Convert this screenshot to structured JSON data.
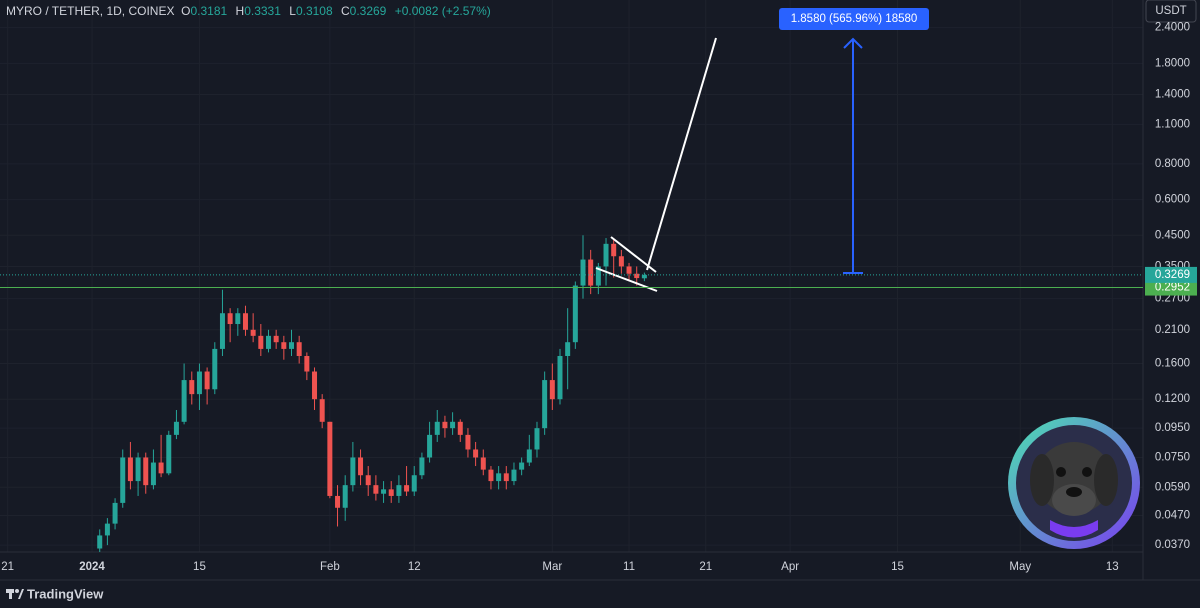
{
  "header": {
    "symbol": "MYRO / TETHER, 1D, COINEX",
    "o": "O",
    "h": "H",
    "l": "L",
    "c": "C",
    "change": "+0.0082 (+2.57%)",
    "currency": "USDT",
    "brand": "TradingView",
    "measure_label": "1.8580 (565.96%) 18580"
  },
  "chart_data": {
    "type": "candlestick",
    "log_scale": true,
    "grid": true,
    "up_color": "#26a69a",
    "down_color": "#ef5350",
    "x": [
      "2024-01-02",
      "2024-01-03",
      "2024-01-04",
      "2024-01-05",
      "2024-01-06",
      "2024-01-07",
      "2024-01-08",
      "2024-01-09",
      "2024-01-10",
      "2024-01-11",
      "2024-01-12",
      "2024-01-13",
      "2024-01-14",
      "2024-01-15",
      "2024-01-16",
      "2024-01-17",
      "2024-01-18",
      "2024-01-19",
      "2024-01-20",
      "2024-01-21",
      "2024-01-22",
      "2024-01-23",
      "2024-01-24",
      "2024-01-25",
      "2024-01-26",
      "2024-01-27",
      "2024-01-28",
      "2024-01-29",
      "2024-01-30",
      "2024-01-31",
      "2024-02-01",
      "2024-02-02",
      "2024-02-03",
      "2024-02-04",
      "2024-02-05",
      "2024-02-06",
      "2024-02-07",
      "2024-02-08",
      "2024-02-09",
      "2024-02-10",
      "2024-02-11",
      "2024-02-12",
      "2024-02-13",
      "2024-02-14",
      "2024-02-15",
      "2024-02-16",
      "2024-02-17",
      "2024-02-18",
      "2024-02-19",
      "2024-02-20",
      "2024-02-21",
      "2024-02-22",
      "2024-02-23",
      "2024-02-24",
      "2024-02-25",
      "2024-02-26",
      "2024-02-27",
      "2024-02-28",
      "2024-02-29",
      "2024-03-01",
      "2024-03-02",
      "2024-03-03",
      "2024-03-04",
      "2024-03-05",
      "2024-03-06",
      "2024-03-07",
      "2024-03-08",
      "2024-03-09",
      "2024-03-10",
      "2024-03-11",
      "2024-03-12",
      "2024-03-13"
    ],
    "open": [
      0.036,
      0.04,
      0.044,
      0.052,
      0.075,
      0.062,
      0.075,
      0.06,
      0.072,
      0.066,
      0.09,
      0.1,
      0.14,
      0.125,
      0.15,
      0.13,
      0.18,
      0.24,
      0.22,
      0.24,
      0.21,
      0.2,
      0.18,
      0.2,
      0.19,
      0.18,
      0.19,
      0.17,
      0.15,
      0.12,
      0.1,
      0.055,
      0.05,
      0.06,
      0.075,
      0.065,
      0.06,
      0.056,
      0.058,
      0.055,
      0.06,
      0.057,
      0.065,
      0.075,
      0.09,
      0.1,
      0.095,
      0.1,
      0.09,
      0.08,
      0.075,
      0.068,
      0.062,
      0.066,
      0.062,
      0.068,
      0.072,
      0.08,
      0.095,
      0.14,
      0.12,
      0.17,
      0.19,
      0.3,
      0.37,
      0.3,
      0.35,
      0.42,
      0.38,
      0.35,
      0.33,
      0.3181
    ],
    "high": [
      0.042,
      0.046,
      0.054,
      0.08,
      0.085,
      0.078,
      0.078,
      0.08,
      0.09,
      0.093,
      0.11,
      0.16,
      0.15,
      0.16,
      0.155,
      0.19,
      0.29,
      0.25,
      0.25,
      0.255,
      0.24,
      0.22,
      0.21,
      0.21,
      0.2,
      0.21,
      0.2,
      0.175,
      0.155,
      0.125,
      0.1,
      0.06,
      0.065,
      0.085,
      0.08,
      0.07,
      0.065,
      0.062,
      0.062,
      0.065,
      0.07,
      0.07,
      0.078,
      0.1,
      0.11,
      0.105,
      0.108,
      0.102,
      0.095,
      0.085,
      0.08,
      0.07,
      0.07,
      0.07,
      0.072,
      0.075,
      0.09,
      0.1,
      0.15,
      0.16,
      0.18,
      0.25,
      0.31,
      0.45,
      0.4,
      0.36,
      0.44,
      0.44,
      0.4,
      0.36,
      0.35,
      0.3331
    ],
    "low": [
      0.035,
      0.037,
      0.042,
      0.05,
      0.058,
      0.055,
      0.056,
      0.058,
      0.064,
      0.065,
      0.087,
      0.098,
      0.115,
      0.11,
      0.115,
      0.125,
      0.17,
      0.19,
      0.2,
      0.2,
      0.19,
      0.17,
      0.175,
      0.18,
      0.165,
      0.17,
      0.16,
      0.14,
      0.11,
      0.095,
      0.054,
      0.043,
      0.045,
      0.057,
      0.06,
      0.055,
      0.053,
      0.052,
      0.052,
      0.052,
      0.055,
      0.055,
      0.063,
      0.072,
      0.085,
      0.088,
      0.09,
      0.085,
      0.075,
      0.07,
      0.065,
      0.058,
      0.058,
      0.058,
      0.06,
      0.065,
      0.07,
      0.075,
      0.09,
      0.11,
      0.115,
      0.13,
      0.18,
      0.27,
      0.28,
      0.28,
      0.3,
      0.32,
      0.33,
      0.31,
      0.3,
      0.3108
    ],
    "close": [
      0.04,
      0.044,
      0.052,
      0.075,
      0.062,
      0.075,
      0.06,
      0.072,
      0.066,
      0.09,
      0.1,
      0.14,
      0.125,
      0.15,
      0.13,
      0.18,
      0.24,
      0.22,
      0.24,
      0.21,
      0.2,
      0.18,
      0.2,
      0.19,
      0.18,
      0.19,
      0.17,
      0.15,
      0.12,
      0.1,
      0.055,
      0.05,
      0.06,
      0.075,
      0.065,
      0.06,
      0.056,
      0.058,
      0.055,
      0.06,
      0.057,
      0.065,
      0.075,
      0.09,
      0.1,
      0.095,
      0.1,
      0.09,
      0.08,
      0.075,
      0.068,
      0.062,
      0.066,
      0.062,
      0.068,
      0.072,
      0.08,
      0.095,
      0.14,
      0.12,
      0.17,
      0.19,
      0.3,
      0.37,
      0.3,
      0.35,
      0.42,
      0.38,
      0.35,
      0.33,
      0.3187,
      0.3269
    ],
    "hline": 0.2952,
    "hline_color": "#4caf50",
    "xlim": [
      "2023-12-20",
      "2024-05-17"
    ],
    "xticks": [
      {
        "value": "2023-12-21",
        "label": "21"
      },
      {
        "value": "2024-01-01",
        "label": "2024"
      },
      {
        "value": "2024-01-15",
        "label": "15"
      },
      {
        "value": "2024-02-01",
        "label": "Feb"
      },
      {
        "value": "2024-02-12",
        "label": "12"
      },
      {
        "value": "2024-03-01",
        "label": "Mar"
      },
      {
        "value": "2024-03-11",
        "label": "11"
      },
      {
        "value": "2024-03-21",
        "label": "21"
      },
      {
        "value": "2024-04-01",
        "label": "Apr"
      },
      {
        "value": "2024-04-15",
        "label": "15"
      },
      {
        "value": "2024-05-01",
        "label": "May"
      },
      {
        "value": "2024-05-13",
        "label": "13"
      }
    ],
    "ylim": [
      0.035,
      3.0
    ],
    "yticks": [
      {
        "value": 0.037,
        "label": "0.0370"
      },
      {
        "value": 0.047,
        "label": "0.0470"
      },
      {
        "value": 0.059,
        "label": "0.0590"
      },
      {
        "value": 0.075,
        "label": "0.0750"
      },
      {
        "value": 0.095,
        "label": "0.0950"
      },
      {
        "value": 0.12,
        "label": "0.1200"
      },
      {
        "value": 0.16,
        "label": "0.1600"
      },
      {
        "value": 0.21,
        "label": "0.2100"
      },
      {
        "value": 0.27,
        "label": "0.2700"
      },
      {
        "value": 0.35,
        "label": "0.3500"
      },
      {
        "value": 0.45,
        "label": "0.4500"
      },
      {
        "value": 0.6,
        "label": "0.6000"
      },
      {
        "value": 0.8,
        "label": "0.8000"
      },
      {
        "value": 1.1,
        "label": "1.1000"
      },
      {
        "value": 1.4,
        "label": "1.4000"
      },
      {
        "value": 1.8,
        "label": "1.8000"
      },
      {
        "value": 2.4,
        "label": "2.4000"
      }
    ]
  }
}
